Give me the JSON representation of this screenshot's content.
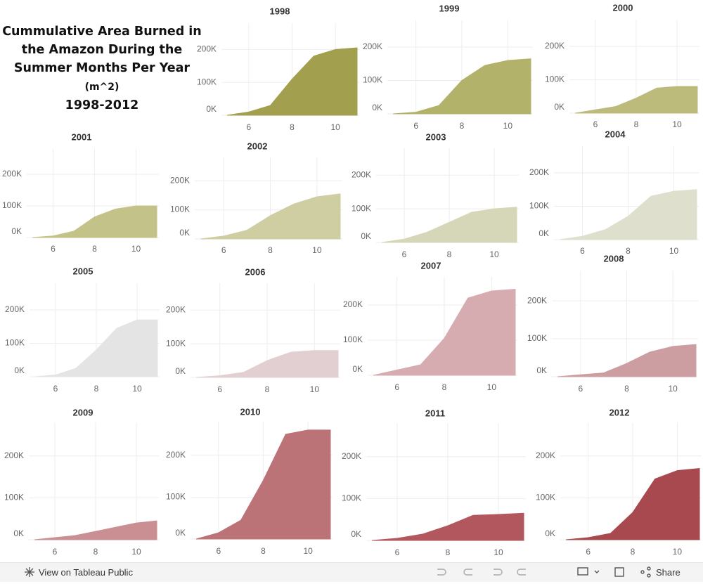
{
  "dashboard": {
    "title": "Cummulative Area Burned in the Amazon During the Summer Months Per Year",
    "unit": "(m^2)",
    "years": "1998-2012"
  },
  "toolbar": {
    "view": "View on Tableau Public",
    "share": "Share"
  },
  "chart_data": [
    {
      "type": "area",
      "title": "1998",
      "x": [
        5,
        6,
        7,
        8,
        9,
        10,
        11
      ],
      "values": [
        0,
        10000,
        30000,
        110000,
        180000,
        200000,
        205000
      ],
      "color": "#a2a04e",
      "xlim": [
        5,
        11
      ],
      "xticks": [
        6,
        8,
        10
      ],
      "ylim": [
        0,
        280000
      ],
      "yticks": [
        {
          "value": 0,
          "label": "0K"
        },
        {
          "value": 100000,
          "label": "100K"
        },
        {
          "value": 200000,
          "label": "200K"
        }
      ],
      "grid": true
    },
    {
      "type": "area",
      "title": "1999",
      "x": [
        5,
        6,
        7,
        8,
        9,
        10,
        11
      ],
      "values": [
        0,
        5000,
        25000,
        100000,
        145000,
        160000,
        165000
      ],
      "color": "#b3b26a",
      "xlim": [
        5,
        11
      ],
      "xticks": [
        6,
        8,
        10
      ],
      "ylim": [
        0,
        280000
      ],
      "yticks": [
        {
          "value": 0,
          "label": "0K"
        },
        {
          "value": 100000,
          "label": "100K"
        },
        {
          "value": 200000,
          "label": "200K"
        }
      ],
      "grid": true
    },
    {
      "type": "area",
      "title": "2000",
      "x": [
        5,
        6,
        7,
        8,
        9,
        10,
        11
      ],
      "values": [
        0,
        10000,
        20000,
        45000,
        75000,
        80000,
        80000
      ],
      "color": "#bcbb7c",
      "xlim": [
        5,
        11
      ],
      "xticks": [
        6,
        8,
        10
      ],
      "ylim": [
        0,
        280000
      ],
      "yticks": [
        {
          "value": 0,
          "label": "0K"
        },
        {
          "value": 100000,
          "label": "100K"
        },
        {
          "value": 200000,
          "label": "200K"
        }
      ],
      "grid": true
    },
    {
      "type": "area",
      "title": "2001",
      "x": [
        5,
        6,
        7,
        8,
        9,
        10,
        11
      ],
      "values": [
        0,
        5000,
        20000,
        65000,
        90000,
        100000,
        100000
      ],
      "color": "#c3c288",
      "xlim": [
        5,
        11
      ],
      "xticks": [
        6,
        8,
        10
      ],
      "ylim": [
        0,
        280000
      ],
      "yticks": [
        {
          "value": 0,
          "label": "0K"
        },
        {
          "value": 100000,
          "label": "100K"
        },
        {
          "value": 200000,
          "label": "200K"
        }
      ],
      "grid": true
    },
    {
      "type": "area",
      "title": "2002",
      "x": [
        5,
        6,
        7,
        8,
        9,
        10,
        11
      ],
      "values": [
        0,
        10000,
        30000,
        80000,
        120000,
        145000,
        155000
      ],
      "color": "#cfcea2",
      "xlim": [
        5,
        11
      ],
      "xticks": [
        6,
        8,
        10
      ],
      "ylim": [
        0,
        280000
      ],
      "yticks": [
        {
          "value": 0,
          "label": "0K"
        },
        {
          "value": 100000,
          "label": "100K"
        },
        {
          "value": 200000,
          "label": "200K"
        }
      ],
      "grid": true
    },
    {
      "type": "area",
      "title": "2003",
      "x": [
        5,
        6,
        7,
        8,
        9,
        10,
        11
      ],
      "values": [
        0,
        10000,
        30000,
        60000,
        90000,
        100000,
        105000
      ],
      "color": "#d6d6b8",
      "xlim": [
        5,
        11
      ],
      "xticks": [
        6,
        8,
        10
      ],
      "ylim": [
        0,
        280000
      ],
      "yticks": [
        {
          "value": 0,
          "label": "0K"
        },
        {
          "value": 100000,
          "label": "100K"
        },
        {
          "value": 200000,
          "label": "200K"
        }
      ],
      "grid": true
    },
    {
      "type": "area",
      "title": "2004",
      "x": [
        5,
        6,
        7,
        8,
        9,
        10,
        11
      ],
      "values": [
        0,
        10000,
        30000,
        70000,
        130000,
        145000,
        150000
      ],
      "color": "#dedfcc",
      "xlim": [
        5,
        11
      ],
      "xticks": [
        6,
        8,
        10
      ],
      "ylim": [
        0,
        280000
      ],
      "yticks": [
        {
          "value": 0,
          "label": "0K"
        },
        {
          "value": 100000,
          "label": "100K"
        },
        {
          "value": 200000,
          "label": "200K"
        }
      ],
      "grid": true
    },
    {
      "type": "area",
      "title": "2005",
      "x": [
        5,
        6,
        7,
        8,
        9,
        10,
        11
      ],
      "values": [
        0,
        5000,
        25000,
        80000,
        145000,
        170000,
        170000
      ],
      "color": "#e4e4e4",
      "xlim": [
        5,
        11
      ],
      "xticks": [
        6,
        8,
        10
      ],
      "ylim": [
        0,
        280000
      ],
      "yticks": [
        {
          "value": 0,
          "label": "0K"
        },
        {
          "value": 100000,
          "label": "100K"
        },
        {
          "value": 200000,
          "label": "200K"
        }
      ],
      "grid": true
    },
    {
      "type": "area",
      "title": "2006",
      "x": [
        5,
        6,
        7,
        8,
        9,
        10,
        11
      ],
      "values": [
        0,
        5000,
        15000,
        50000,
        75000,
        80000,
        80000
      ],
      "color": "#e2cfd1",
      "xlim": [
        5,
        11
      ],
      "xticks": [
        6,
        8,
        10
      ],
      "ylim": [
        0,
        280000
      ],
      "yticks": [
        {
          "value": 0,
          "label": "0K"
        },
        {
          "value": 100000,
          "label": "100K"
        },
        {
          "value": 200000,
          "label": "200K"
        }
      ],
      "grid": true
    },
    {
      "type": "area",
      "title": "2007",
      "x": [
        5,
        6,
        7,
        8,
        9,
        10,
        11
      ],
      "values": [
        0,
        15000,
        30000,
        105000,
        220000,
        240000,
        245000
      ],
      "color": "#d6acb1",
      "xlim": [
        5,
        11
      ],
      "xticks": [
        6,
        8,
        10
      ],
      "ylim": [
        0,
        280000
      ],
      "yticks": [
        {
          "value": 0,
          "label": "0K"
        },
        {
          "value": 100000,
          "label": "100K"
        },
        {
          "value": 200000,
          "label": "200K"
        }
      ],
      "grid": true
    },
    {
      "type": "area",
      "title": "2008",
      "x": [
        5,
        6,
        7,
        8,
        9,
        10,
        11
      ],
      "values": [
        0,
        5000,
        10000,
        35000,
        65000,
        80000,
        85000
      ],
      "color": "#cc9da1",
      "xlim": [
        5,
        11
      ],
      "xticks": [
        6,
        8,
        10
      ],
      "ylim": [
        0,
        280000
      ],
      "yticks": [
        {
          "value": 0,
          "label": "0K"
        },
        {
          "value": 100000,
          "label": "100K"
        },
        {
          "value": 200000,
          "label": "200K"
        }
      ],
      "grid": true
    },
    {
      "type": "area",
      "title": "2009",
      "x": [
        5,
        6,
        7,
        8,
        9,
        10,
        11
      ],
      "values": [
        0,
        5000,
        10000,
        20000,
        30000,
        40000,
        45000
      ],
      "color": "#c98f93",
      "xlim": [
        5,
        11
      ],
      "xticks": [
        6,
        8,
        10
      ],
      "ylim": [
        0,
        280000
      ],
      "yticks": [
        {
          "value": 0,
          "label": "0K"
        },
        {
          "value": 100000,
          "label": "100K"
        },
        {
          "value": 200000,
          "label": "200K"
        }
      ],
      "grid": true
    },
    {
      "type": "area",
      "title": "2010",
      "x": [
        5,
        6,
        7,
        8,
        9,
        10,
        11
      ],
      "values": [
        0,
        15000,
        45000,
        140000,
        250000,
        260000,
        260000
      ],
      "color": "#bb7377",
      "xlim": [
        5,
        11
      ],
      "xticks": [
        6,
        8,
        10
      ],
      "ylim": [
        0,
        280000
      ],
      "yticks": [
        {
          "value": 0,
          "label": "0K"
        },
        {
          "value": 100000,
          "label": "100K"
        },
        {
          "value": 200000,
          "label": "200K"
        }
      ],
      "grid": true
    },
    {
      "type": "area",
      "title": "2011",
      "x": [
        5,
        6,
        7,
        8,
        9,
        10,
        11
      ],
      "values": [
        0,
        5000,
        15000,
        35000,
        60000,
        62000,
        65000
      ],
      "color": "#b2575d",
      "xlim": [
        5,
        11
      ],
      "xticks": [
        6,
        8,
        10
      ],
      "ylim": [
        0,
        280000
      ],
      "yticks": [
        {
          "value": 0,
          "label": "0K"
        },
        {
          "value": 100000,
          "label": "100K"
        },
        {
          "value": 200000,
          "label": "200K"
        }
      ],
      "grid": true
    },
    {
      "type": "area",
      "title": "2012",
      "x": [
        5,
        6,
        7,
        8,
        9,
        10,
        11
      ],
      "values": [
        0,
        5000,
        15000,
        65000,
        145000,
        165000,
        170000
      ],
      "color": "#a8484f",
      "xlim": [
        5,
        11
      ],
      "xticks": [
        6,
        8,
        10
      ],
      "ylim": [
        0,
        280000
      ],
      "yticks": [
        {
          "value": 0,
          "label": "0K"
        },
        {
          "value": 100000,
          "label": "100K"
        },
        {
          "value": 200000,
          "label": "200K"
        }
      ],
      "grid": true
    }
  ]
}
